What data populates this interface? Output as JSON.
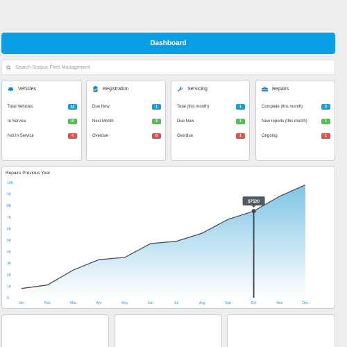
{
  "header": {
    "title": "Dashboard"
  },
  "search": {
    "placeholder": "Search Scopus Fleet Management"
  },
  "cards": {
    "vehicles": {
      "title": "Vehicles",
      "rows": [
        {
          "label": "Total Vehicles",
          "value": "12"
        },
        {
          "label": "In Service",
          "value": "8"
        },
        {
          "label": "Not In Service",
          "value": "4"
        }
      ]
    },
    "registration": {
      "title": "Registration",
      "rows": [
        {
          "label": "Due Now",
          "value": "1"
        },
        {
          "label": "Next Month",
          "value": "3"
        },
        {
          "label": "Overdue",
          "value": "0"
        }
      ]
    },
    "servicing": {
      "title": "Servicing",
      "rows": [
        {
          "label": "Total (this month)",
          "value": "1"
        },
        {
          "label": "Due Now",
          "value": "1"
        },
        {
          "label": "Overdue",
          "value": "1"
        }
      ]
    },
    "repairs": {
      "title": "Repairs",
      "rows": [
        {
          "label": "Complete (this month)",
          "value": "3"
        },
        {
          "label": "New reports (this month)",
          "value": "1"
        },
        {
          "label": "Ongoing",
          "value": "1"
        }
      ]
    }
  },
  "colors": {
    "accent": "#0a9fe4",
    "blue": "#1e9ad6",
    "green": "#5cb85c",
    "red": "#d9534f",
    "area_top": "#7ec4e6"
  },
  "chart_data": {
    "type": "area",
    "title": "Repairs Previous Year",
    "categories": [
      "Jan",
      "Feb",
      "Mar",
      "Apr",
      "May",
      "Jun",
      "Jul",
      "Aug",
      "Sep",
      "Oct",
      "Nov",
      "Dec"
    ],
    "values": [
      800,
      1100,
      2400,
      3300,
      3500,
      4700,
      4900,
      5600,
      6800,
      7520,
      8800,
      9800
    ],
    "yticks": [
      "0",
      "1K",
      "2K",
      "3K",
      "4K",
      "5K",
      "6K",
      "7K",
      "8K",
      "9K",
      "10K"
    ],
    "ylim": [
      0,
      10000
    ],
    "tooltip": {
      "label": "$7520",
      "category": "Oct"
    }
  }
}
